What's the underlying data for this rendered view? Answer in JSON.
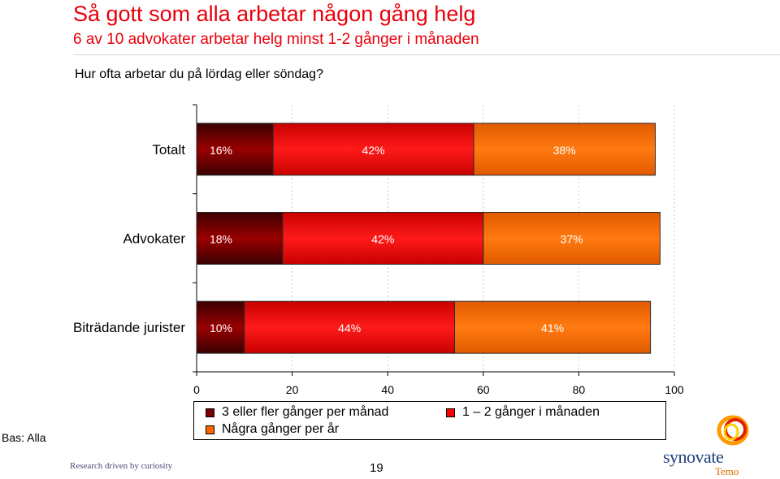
{
  "header": {
    "title": "Så gott som alla arbetar någon gång helg",
    "subtitle": "6 av 10 advokater arbetar helg minst 1-2 gånger i månaden",
    "question": "Hur ofta arbetar du på lördag eller söndag?"
  },
  "chart_data": {
    "type": "bar",
    "orientation": "horizontal",
    "stacked": true,
    "categories": [
      "Totalt",
      "Advokater",
      "Biträdande jurister"
    ],
    "series": [
      {
        "name": "3 eller fler gånger per månad",
        "values": [
          16,
          18,
          10
        ],
        "labels": [
          "16%",
          "18%",
          "10%"
        ],
        "color": "#6b0000"
      },
      {
        "name": "1 – 2 gånger i månaden",
        "values": [
          42,
          42,
          44
        ],
        "labels": [
          "42%",
          "42%",
          "44%"
        ],
        "color": "#ff0000"
      },
      {
        "name": "Några gånger per år",
        "values": [
          38,
          37,
          41
        ],
        "labels": [
          "38%",
          "37%",
          "41%"
        ],
        "color": "#ff6a00"
      }
    ],
    "xlim": [
      0,
      100
    ],
    "xticks": [
      "0",
      "20",
      "40",
      "60",
      "80",
      "100"
    ],
    "grid": "vertical dotted"
  },
  "legend": {
    "items": [
      {
        "label": "3 eller fler gånger per månad",
        "color": "#7a0000"
      },
      {
        "label": "1 – 2 gånger i månaden",
        "color": "#ff0000"
      },
      {
        "label": "Några gånger per år",
        "color": "#ff6600"
      }
    ]
  },
  "footer": {
    "base": "Bas: Alla",
    "slogan": "Research driven by curiosity",
    "page_number": "19",
    "logo_text": "synovate",
    "logo_sub": "Temo"
  }
}
